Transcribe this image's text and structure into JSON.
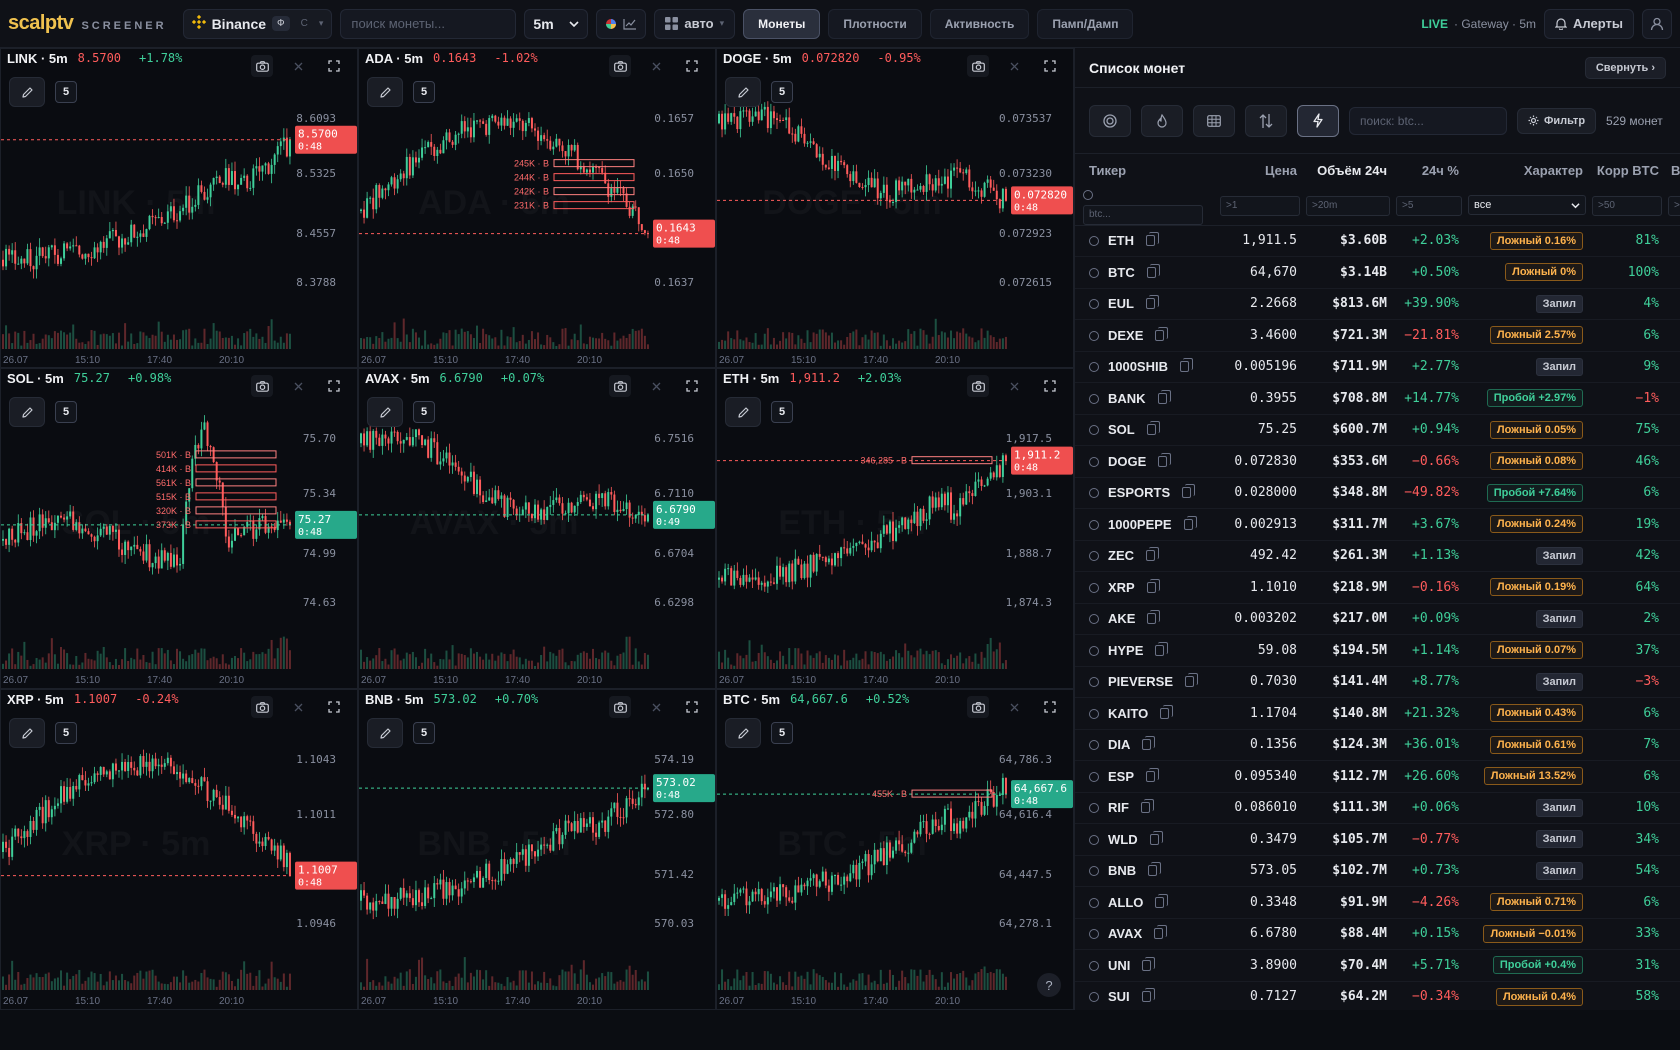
{
  "topbar": {
    "logo": "scalptv",
    "logo_sub": "SCREENER",
    "exchange": "Binance",
    "exchange_toggle_on": "Ф",
    "exchange_toggle_off": "С",
    "search_placeholder": "поиск монеты...",
    "timeframe": "5m",
    "layout": "авто",
    "tabs": [
      "Монеты",
      "Плотности",
      "Активность",
      "Памп/Дамп"
    ],
    "active_tab": "Монеты",
    "live_tag": "LIVE",
    "live_info": "· Gateway · 5m",
    "alerts": "Алерты"
  },
  "colors": {
    "up": "#3fcf9a",
    "down": "#ff5c5c",
    "accent": "#f0c24f"
  },
  "charts": [
    {
      "sym": "LINK · 5m",
      "price": "8.5700",
      "chg": "+1.78%",
      "dir": "down",
      "ticks": [
        "8.6093",
        "8.5325",
        "8.4557",
        "8.3788"
      ],
      "badge": "8.5700",
      "timer": "0:48",
      "watermark": "LINK · 5m",
      "seed": 3,
      "trend": "up",
      "levels": []
    },
    {
      "sym": "ADA · 5m",
      "price": "0.1643",
      "chg": "-1.02%",
      "dir": "down",
      "ticks": [
        "0.1657",
        "0.1650",
        "0.1644",
        "0.1637"
      ],
      "badge": "0.1643",
      "timer": "0:48",
      "watermark": "ADA · 5m",
      "seed": 7,
      "trend": "hump",
      "levels": [
        "245K · B",
        "244K · B",
        "242K · B",
        "231K · B"
      ]
    },
    {
      "sym": "DOGE · 5m",
      "price": "0.072820",
      "chg": "-0.95%",
      "dir": "down",
      "ticks": [
        "0.073537",
        "0.073230",
        "0.072923",
        "0.072615"
      ],
      "badge": "0.072820",
      "timer": "0:48",
      "watermark": "DOGE · 5m",
      "seed": 11,
      "trend": "down",
      "levels": []
    },
    {
      "sym": "SOL · 5m",
      "price": "75.27",
      "chg": "+0.98%",
      "dir": "up",
      "ticks": [
        "75.70",
        "75.34",
        "74.99",
        "74.63"
      ],
      "badge": "75.27",
      "timer": "0:48",
      "watermark": "SOL · 5m",
      "seed": 13,
      "trend": "spike",
      "levels": [
        "501K · B",
        "414K · B",
        "561K · B",
        "515K · B",
        "320K · B",
        "373K · B"
      ]
    },
    {
      "sym": "AVAX · 5m",
      "price": "6.6790",
      "chg": "+0.07%",
      "dir": "up",
      "ticks": [
        "6.7516",
        "6.7110",
        "6.6704",
        "6.6298"
      ],
      "badge": "6.6790",
      "timer": "0:49",
      "watermark": "AVAX · 5m",
      "seed": 17,
      "trend": "down",
      "levels": []
    },
    {
      "sym": "ETH · 5m",
      "price": "1,911.2",
      "chg": "+2.03%",
      "dir": "down",
      "ticks": [
        "1,917.5",
        "1,903.1",
        "1,888.7",
        "1,874.3"
      ],
      "badge": "1,911.2",
      "timer": "0:48",
      "watermark": "ETH · 5m",
      "seed": 19,
      "trend": "up",
      "levels": [
        "346,285 · B"
      ]
    },
    {
      "sym": "XRP · 5m",
      "price": "1.1007",
      "chg": "-0.24%",
      "dir": "down",
      "ticks": [
        "1.1043",
        "1.1011",
        "1.0979",
        "1.0946"
      ],
      "badge": "1.1007",
      "timer": "0:48",
      "watermark": "XRP · 5m",
      "seed": 23,
      "trend": "hump",
      "levels": []
    },
    {
      "sym": "BNB · 5m",
      "price": "573.02",
      "chg": "+0.70%",
      "dir": "up",
      "ticks": [
        "574.19",
        "572.80",
        "571.42",
        "570.03"
      ],
      "badge": "573.02",
      "timer": "0:48",
      "watermark": "BNB · 5m",
      "seed": 29,
      "trend": "up",
      "levels": []
    },
    {
      "sym": "BTC · 5m",
      "price": "64,667.6",
      "chg": "+0.52%",
      "dir": "up",
      "ticks": [
        "64,786.3",
        "64,616.4",
        "64,447.5",
        "64,278.1"
      ],
      "badge": "64,667.6",
      "timer": "0:48",
      "watermark": "BTC · 5m",
      "seed": 31,
      "trend": "up",
      "levels": [
        "455K · B"
      ]
    }
  ],
  "time_labels": [
    "26.07",
    "15:10",
    "17:40",
    "20:10"
  ],
  "panel": {
    "title": "Список монет",
    "collapse": "Свернуть ›",
    "search_placeholder": "поиск: btc...",
    "filter": "Фильтр",
    "count": "529 монет",
    "headers": [
      "Тикер",
      "Цена",
      "Объём 24ч",
      "24ч %",
      "Характер",
      "Корр BTC",
      "Во"
    ],
    "filters": {
      "ticker": "btc...",
      "price": ">1",
      "volume": ">20m",
      "change": ">5",
      "character": "все",
      "corr": ">50",
      "last": ">"
    }
  },
  "coins": [
    {
      "t": "ETH",
      "p": "1,911.5",
      "v": "$3.60B",
      "c": "+2.03%",
      "ch": "Ложный 0.16%",
      "k": "lozh",
      "corr": "81%",
      "cd": "up"
    },
    {
      "t": "BTC",
      "p": "64,670",
      "v": "$3.14B",
      "c": "+0.50%",
      "ch": "Ложный 0%",
      "k": "lozh",
      "corr": "100%",
      "cd": "up"
    },
    {
      "t": "EUL",
      "p": "2.2668",
      "v": "$813.6M",
      "c": "+39.90%",
      "ch": "Запил",
      "k": "zapil",
      "corr": "4%",
      "cd": "up"
    },
    {
      "t": "DEXE",
      "p": "3.4600",
      "v": "$721.3M",
      "c": "−21.81%",
      "ch": "Ложный 2.57%",
      "k": "lozh",
      "corr": "6%",
      "cd": "down"
    },
    {
      "t": "1000SHIB",
      "p": "0.005196",
      "v": "$711.9M",
      "c": "+2.77%",
      "ch": "Запил",
      "k": "zapil",
      "corr": "9%",
      "cd": "up"
    },
    {
      "t": "BANK",
      "p": "0.3955",
      "v": "$708.8M",
      "c": "+14.77%",
      "ch": "Пробой +2.97%",
      "k": "probo",
      "corr": "−1%",
      "cd": "up",
      "corrd": "down"
    },
    {
      "t": "SOL",
      "p": "75.25",
      "v": "$600.7M",
      "c": "+0.94%",
      "ch": "Ложный 0.05%",
      "k": "lozh",
      "corr": "75%",
      "cd": "up"
    },
    {
      "t": "DOGE",
      "p": "0.072830",
      "v": "$353.6M",
      "c": "−0.66%",
      "ch": "Ложный 0.08%",
      "k": "lozh",
      "corr": "46%",
      "cd": "down"
    },
    {
      "t": "ESPORTS",
      "p": "0.028000",
      "v": "$348.8M",
      "c": "−49.82%",
      "ch": "Пробой +7.64%",
      "k": "probo",
      "corr": "6%",
      "cd": "down"
    },
    {
      "t": "1000PEPE",
      "p": "0.002913",
      "v": "$311.7M",
      "c": "+3.67%",
      "ch": "Ложный 0.24%",
      "k": "lozh",
      "corr": "19%",
      "cd": "up"
    },
    {
      "t": "ZEC",
      "p": "492.42",
      "v": "$261.3M",
      "c": "+1.13%",
      "ch": "Запил",
      "k": "zapil",
      "corr": "42%",
      "cd": "up"
    },
    {
      "t": "XRP",
      "p": "1.1010",
      "v": "$218.9M",
      "c": "−0.16%",
      "ch": "Ложный 0.19%",
      "k": "lozh",
      "corr": "64%",
      "cd": "down"
    },
    {
      "t": "AKE",
      "p": "0.003202",
      "v": "$217.0M",
      "c": "+0.09%",
      "ch": "Запил",
      "k": "zapil",
      "corr": "2%",
      "cd": "up"
    },
    {
      "t": "HYPE",
      "p": "59.08",
      "v": "$194.5M",
      "c": "+1.14%",
      "ch": "Ложный 0.07%",
      "k": "lozh",
      "corr": "37%",
      "cd": "up"
    },
    {
      "t": "PIEVERSE",
      "p": "0.7030",
      "v": "$141.4M",
      "c": "+8.77%",
      "ch": "Запил",
      "k": "zapil",
      "corr": "−3%",
      "cd": "up",
      "corrd": "down"
    },
    {
      "t": "KAITO",
      "p": "1.1704",
      "v": "$140.8M",
      "c": "+21.32%",
      "ch": "Ложный 0.43%",
      "k": "lozh",
      "corr": "6%",
      "cd": "up"
    },
    {
      "t": "DIA",
      "p": "0.1356",
      "v": "$124.3M",
      "c": "+36.01%",
      "ch": "Ложный 0.61%",
      "k": "lozh",
      "corr": "7%",
      "cd": "up"
    },
    {
      "t": "ESP",
      "p": "0.095340",
      "v": "$112.7M",
      "c": "+26.60%",
      "ch": "Ложный 13.52%",
      "k": "lozh",
      "corr": "6%",
      "cd": "up"
    },
    {
      "t": "RIF",
      "p": "0.086010",
      "v": "$111.3M",
      "c": "+0.06%",
      "ch": "Запил",
      "k": "zapil",
      "corr": "10%",
      "cd": "up"
    },
    {
      "t": "WLD",
      "p": "0.3479",
      "v": "$105.7M",
      "c": "−0.77%",
      "ch": "Запил",
      "k": "zapil",
      "corr": "34%",
      "cd": "down"
    },
    {
      "t": "BNB",
      "p": "573.05",
      "v": "$102.7M",
      "c": "+0.73%",
      "ch": "Запил",
      "k": "zapil",
      "corr": "54%",
      "cd": "up"
    },
    {
      "t": "ALLO",
      "p": "0.3348",
      "v": "$91.9M",
      "c": "−4.26%",
      "ch": "Ложный 0.71%",
      "k": "lozh",
      "corr": "6%",
      "cd": "down"
    },
    {
      "t": "AVAX",
      "p": "6.6780",
      "v": "$88.4M",
      "c": "+0.15%",
      "ch": "Ложный −0.01%",
      "k": "lozh",
      "corr": "33%",
      "cd": "up"
    },
    {
      "t": "UNI",
      "p": "3.8900",
      "v": "$70.4M",
      "c": "+5.71%",
      "ch": "Пробой +0.4%",
      "k": "probo",
      "corr": "31%",
      "cd": "up"
    },
    {
      "t": "SUI",
      "p": "0.7127",
      "v": "$64.2M",
      "c": "−0.34%",
      "ch": "Ложный 0.4%",
      "k": "lozh",
      "corr": "58%",
      "cd": "down"
    }
  ]
}
